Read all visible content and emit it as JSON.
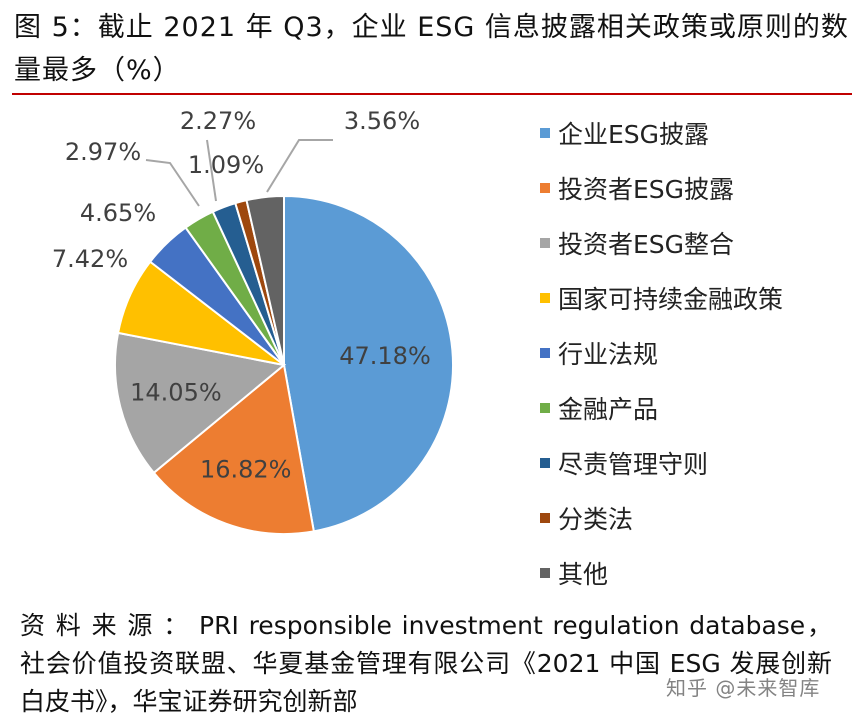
{
  "figure": {
    "title": "图 5：截止 2021 年 Q3，企业 ESG 信息披露相关政策或原则的数量最多（%）",
    "source_label": "资料来源：",
    "source_text": "PRI responsible investment regulation database，社会价值投资联盟、华夏基金管理有限公司《2021 中国 ESG 发展创新白皮书》，华宝证券研究创新部",
    "watermark": "知乎 @未来智库"
  },
  "chart_data": {
    "type": "pie",
    "title": "",
    "start": "12 o'clock, clockwise",
    "legend_position": "right",
    "slices": [
      {
        "name": "企业ESG披露",
        "value": 47.18,
        "label": "47.18%",
        "color": "#5b9bd5"
      },
      {
        "name": "投资者ESG披露",
        "value": 16.82,
        "label": "16.82%",
        "color": "#ed7d31"
      },
      {
        "name": "投资者ESG整合",
        "value": 14.05,
        "label": "14.05%",
        "color": "#a5a5a5"
      },
      {
        "name": "国家可持续金融政策",
        "value": 7.42,
        "label": "7.42%",
        "color": "#ffc000"
      },
      {
        "name": "行业法规",
        "value": 4.65,
        "label": "4.65%",
        "color": "#4472c4"
      },
      {
        "name": "金融产品",
        "value": 2.97,
        "label": "2.97%",
        "color": "#70ad47"
      },
      {
        "name": "尽责管理守则",
        "value": 2.27,
        "label": "2.27%",
        "color": "#255e91"
      },
      {
        "name": "分类法",
        "value": 1.09,
        "label": "1.09%",
        "color": "#9e480e"
      },
      {
        "name": "其他",
        "value": 3.56,
        "label": "3.56%",
        "color": "#636363"
      }
    ]
  }
}
